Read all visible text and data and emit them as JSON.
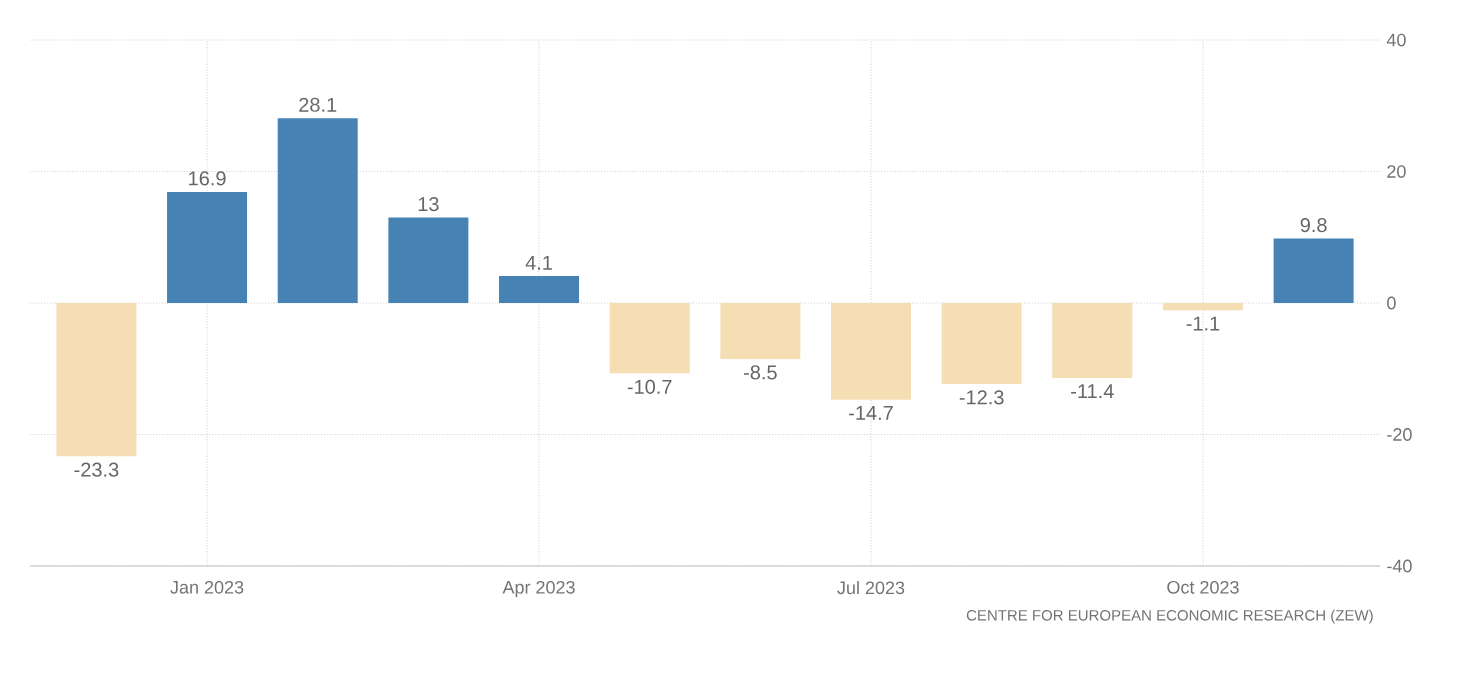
{
  "chart_data": {
    "type": "bar",
    "categories": [
      null,
      "Jan 2023",
      null,
      null,
      "Apr 2023",
      null,
      null,
      "Jul 2023",
      null,
      null,
      "Oct 2023",
      null
    ],
    "values": [
      -23.3,
      16.9,
      28.1,
      13,
      4.1,
      -10.7,
      -8.5,
      -14.7,
      -12.3,
      -11.4,
      -1.1,
      9.8
    ],
    "colors": [
      "#f5deb3",
      "#4682b4",
      "#4682b4",
      "#4682b4",
      "#4682b4",
      "#f5deb3",
      "#f5deb3",
      "#f5deb3",
      "#f5deb3",
      "#f5deb3",
      "#f5deb3",
      "#4682b4"
    ],
    "ylim": [
      -40,
      40
    ],
    "yticks": [
      -40,
      -20,
      0,
      20,
      40
    ],
    "grid": true,
    "data_labels": true,
    "annotations": [
      "CENTRE FOR EUROPEAN ECONOMIC RESEARCH (ZEW)"
    ]
  }
}
